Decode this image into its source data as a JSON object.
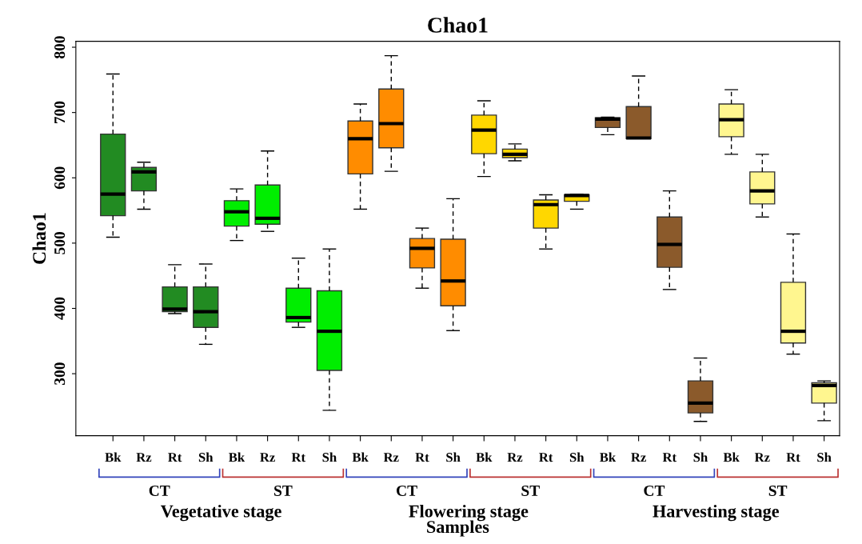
{
  "chart_data": {
    "type": "box",
    "title": "Chao1",
    "xlabel": "Samples",
    "ylabel": "Chao1",
    "categories": [
      "Bk",
      "Rz",
      "Rt",
      "Sh",
      "Bk",
      "Rz",
      "Rt",
      "Sh",
      "Bk",
      "Rz",
      "Rt",
      "Sh",
      "Bk",
      "Rz",
      "Rt",
      "Sh",
      "Bk",
      "Rz",
      "Rt",
      "Sh",
      "Bk",
      "Rz",
      "Rt",
      "Sh"
    ],
    "colors": [
      "#228b22",
      "#228b22",
      "#228b22",
      "#228b22",
      "#00ee00",
      "#00ee00",
      "#00ee00",
      "#00ee00",
      "#ff8c00",
      "#ff8c00",
      "#ff8c00",
      "#ff8c00",
      "#ffd700",
      "#ffd700",
      "#ffd700",
      "#ffd700",
      "#8b5a2b",
      "#8b5a2b",
      "#8b5a2b",
      "#8b5a2b",
      "#fff68f",
      "#fff68f",
      "#fff68f",
      "#fff68f"
    ],
    "boxes": [
      {
        "low": 509,
        "q1": 542,
        "median": 575,
        "q3": 667,
        "high": 759
      },
      {
        "low": 552,
        "q1": 580,
        "median": 609,
        "q3": 616,
        "high": 624
      },
      {
        "low": 392,
        "q1": 395,
        "median": 399,
        "q3": 433,
        "high": 467
      },
      {
        "low": 345,
        "q1": 371,
        "median": 395,
        "q3": 433,
        "high": 468
      },
      {
        "low": 504,
        "q1": 526,
        "median": 548,
        "q3": 565,
        "high": 583
      },
      {
        "low": 518,
        "q1": 529,
        "median": 538,
        "q3": 589,
        "high": 641
      },
      {
        "low": 371,
        "q1": 379,
        "median": 386,
        "q3": 431,
        "high": 477
      },
      {
        "low": 244,
        "q1": 305,
        "median": 365,
        "q3": 427,
        "high": 491
      },
      {
        "low": 552,
        "q1": 606,
        "median": 660,
        "q3": 687,
        "high": 713
      },
      {
        "low": 610,
        "q1": 646,
        "median": 683,
        "q3": 736,
        "high": 787
      },
      {
        "low": 431,
        "q1": 462,
        "median": 492,
        "q3": 507,
        "high": 523
      },
      {
        "low": 366,
        "q1": 404,
        "median": 442,
        "q3": 506,
        "high": 568
      },
      {
        "low": 602,
        "q1": 637,
        "median": 673,
        "q3": 696,
        "high": 718
      },
      {
        "low": 626,
        "q1": 631,
        "median": 636,
        "q3": 644,
        "high": 652
      },
      {
        "low": 491,
        "q1": 523,
        "median": 559,
        "q3": 566,
        "high": 574
      },
      {
        "low": 552,
        "q1": 564,
        "median": 573,
        "q3": 574,
        "high": 575
      },
      {
        "low": 666,
        "q1": 677,
        "median": 690,
        "q3": 692,
        "high": 693
      },
      {
        "low": 660,
        "q1": 660,
        "median": 661,
        "q3": 709,
        "high": 756
      },
      {
        "low": 429,
        "q1": 463,
        "median": 498,
        "q3": 540,
        "high": 580
      },
      {
        "low": 227,
        "q1": 240,
        "median": 255,
        "q3": 289,
        "high": 324
      },
      {
        "low": 636,
        "q1": 663,
        "median": 689,
        "q3": 713,
        "high": 735
      },
      {
        "low": 540,
        "q1": 560,
        "median": 580,
        "q3": 609,
        "high": 636
      },
      {
        "low": 330,
        "q1": 347,
        "median": 365,
        "q3": 440,
        "high": 514
      },
      {
        "low": 228,
        "q1": 255,
        "median": 282,
        "q3": 286,
        "high": 289
      }
    ],
    "ylim": [
      205,
      809
    ],
    "yticks": [
      300,
      400,
      500,
      600,
      700,
      800
    ],
    "annotations": [
      "CT",
      "ST",
      "CT",
      "ST",
      "CT",
      "ST",
      "Vegetative stage",
      "Flowering stage",
      "Harvesting stage"
    ]
  }
}
